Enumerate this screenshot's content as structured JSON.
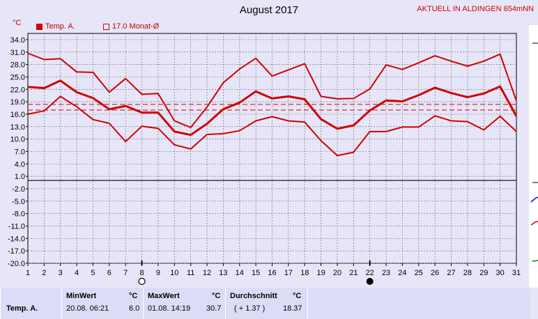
{
  "title": "August 2017",
  "station": "AKTUELL IN ALDINGEN 654mNN",
  "unit": "°C",
  "legend": {
    "series_label": "Temp. A.",
    "avg_label": "17.0 Monat-Ø"
  },
  "colors": {
    "line": "#d00000",
    "grid": "#777777",
    "plot_bg": "#e6e6f8"
  },
  "chart_data": {
    "type": "line",
    "x": [
      1,
      2,
      3,
      4,
      5,
      6,
      7,
      8,
      9,
      10,
      11,
      12,
      13,
      14,
      15,
      16,
      17,
      18,
      19,
      20,
      21,
      22,
      23,
      24,
      25,
      26,
      27,
      28,
      29,
      30,
      31
    ],
    "xticks": [
      "1",
      "2",
      "3",
      "4",
      "5",
      "6",
      "7",
      "8",
      "9",
      "10",
      "11",
      "12",
      "13",
      "14",
      "15",
      "16",
      "17",
      "18",
      "19",
      "20",
      "21",
      "22",
      "23",
      "24",
      "25",
      "26",
      "27",
      "28",
      "29",
      "30",
      "31"
    ],
    "yticks": [
      "34.0",
      "31.0",
      "28.0",
      "25.0",
      "22.0",
      "19.0",
      "16.0",
      "13.0",
      "10.0",
      "7.0",
      "4.0",
      "1.0",
      "-2.0",
      "-5.0",
      "-8.0",
      "-11.0",
      "-14.0",
      "-17.0",
      "-20.0"
    ],
    "ylim": [
      -20,
      35.5
    ],
    "grid": true,
    "series": [
      {
        "values": [
          30.7,
          29.2,
          29.4,
          26.2,
          26.1,
          21.3,
          24.6,
          20.8,
          21.0,
          14.4,
          12.8,
          17.7,
          23.6,
          26.9,
          29.5,
          25.2,
          26.7,
          28.2,
          20.3,
          19.7,
          19.8,
          22.1,
          27.9,
          26.8,
          28.4,
          30.1,
          28.8,
          27.6,
          28.8,
          30.5,
          19.2
        ]
      },
      {
        "values": [
          22.6,
          22.3,
          24.1,
          21.3,
          19.9,
          17.2,
          18.0,
          16.4,
          16.4,
          11.8,
          11.0,
          13.7,
          17.2,
          18.8,
          21.5,
          19.8,
          20.3,
          19.6,
          14.8,
          12.5,
          13.3,
          16.9,
          19.3,
          19.1,
          20.6,
          22.4,
          21.1,
          20.1,
          21.0,
          22.7,
          15.5
        ]
      },
      {
        "values": [
          16.0,
          16.8,
          20.3,
          17.8,
          14.7,
          13.8,
          9.4,
          13.1,
          12.6,
          8.6,
          7.6,
          11.1,
          11.3,
          12.0,
          14.4,
          15.4,
          14.4,
          14.1,
          9.6,
          6.0,
          6.8,
          11.8,
          11.8,
          12.9,
          12.9,
          15.6,
          14.4,
          14.2,
          12.2,
          15.5,
          11.8
        ]
      }
    ],
    "reference_lines": [
      {
        "value": 17.0,
        "label": "17.0 Monat-Ø"
      },
      {
        "value": 18.37
      }
    ],
    "moon_markers": [
      {
        "day": 8,
        "phase": "full"
      },
      {
        "day": 22,
        "phase": "new"
      }
    ]
  },
  "stats": {
    "row_label": "Temp. A.",
    "min": {
      "header": "MinWert",
      "unit": "°C",
      "when": "20.08.  06:21",
      "value": "6.0"
    },
    "max": {
      "header": "MaxWert",
      "unit": "°C",
      "when": "01.08.  14:19",
      "value": "30.7"
    },
    "avg": {
      "header": "Durchschnitt",
      "unit": "°C",
      "delta": "( + 1.37 )",
      "value": "18.37"
    }
  }
}
